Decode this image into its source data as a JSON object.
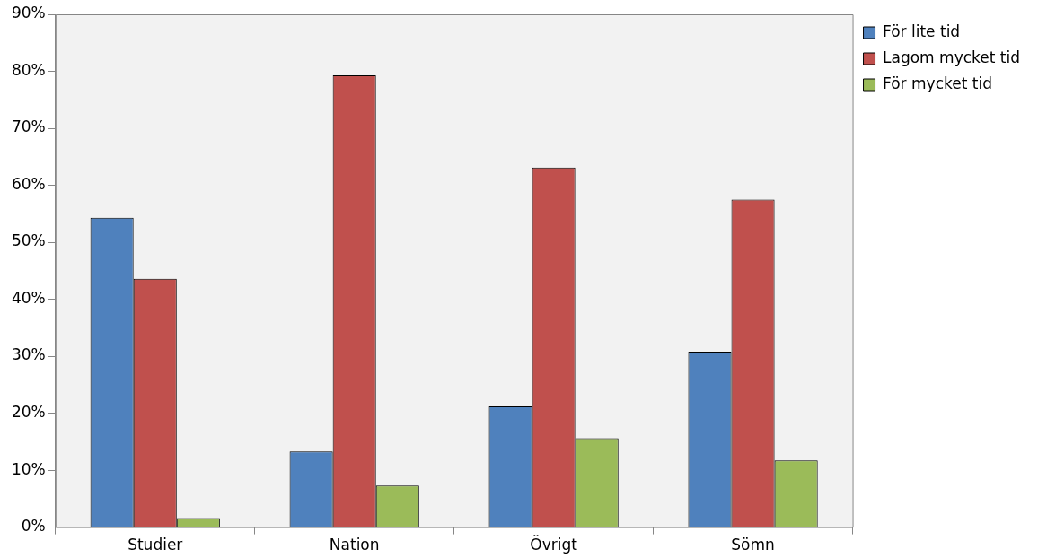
{
  "chart_data": {
    "type": "bar",
    "categories": [
      "Studier",
      "Nation",
      "Övrigt",
      "Sömn"
    ],
    "series": [
      {
        "name": "För lite tid",
        "color": "#4f81bd",
        "values": [
          54.3,
          13.3,
          21.2,
          30.8
        ]
      },
      {
        "name": "Lagom mycket tid",
        "color": "#c0504d",
        "values": [
          43.6,
          79.3,
          63.1,
          57.5
        ]
      },
      {
        "name": "För mycket tid",
        "color": "#9bbb59",
        "values": [
          1.6,
          7.3,
          15.6,
          11.7
        ]
      }
    ],
    "ylim": [
      0,
      90
    ],
    "yticks": [
      {
        "value": 0,
        "label": "0%"
      },
      {
        "value": 10,
        "label": "10%"
      },
      {
        "value": 20,
        "label": "20%"
      },
      {
        "value": 30,
        "label": "30%"
      },
      {
        "value": 40,
        "label": "40%"
      },
      {
        "value": 50,
        "label": "50%"
      },
      {
        "value": 60,
        "label": "60%"
      },
      {
        "value": 70,
        "label": "70%"
      },
      {
        "value": 80,
        "label": "80%"
      },
      {
        "value": 90,
        "label": "90%"
      }
    ],
    "grid": false,
    "legend": "top right"
  }
}
